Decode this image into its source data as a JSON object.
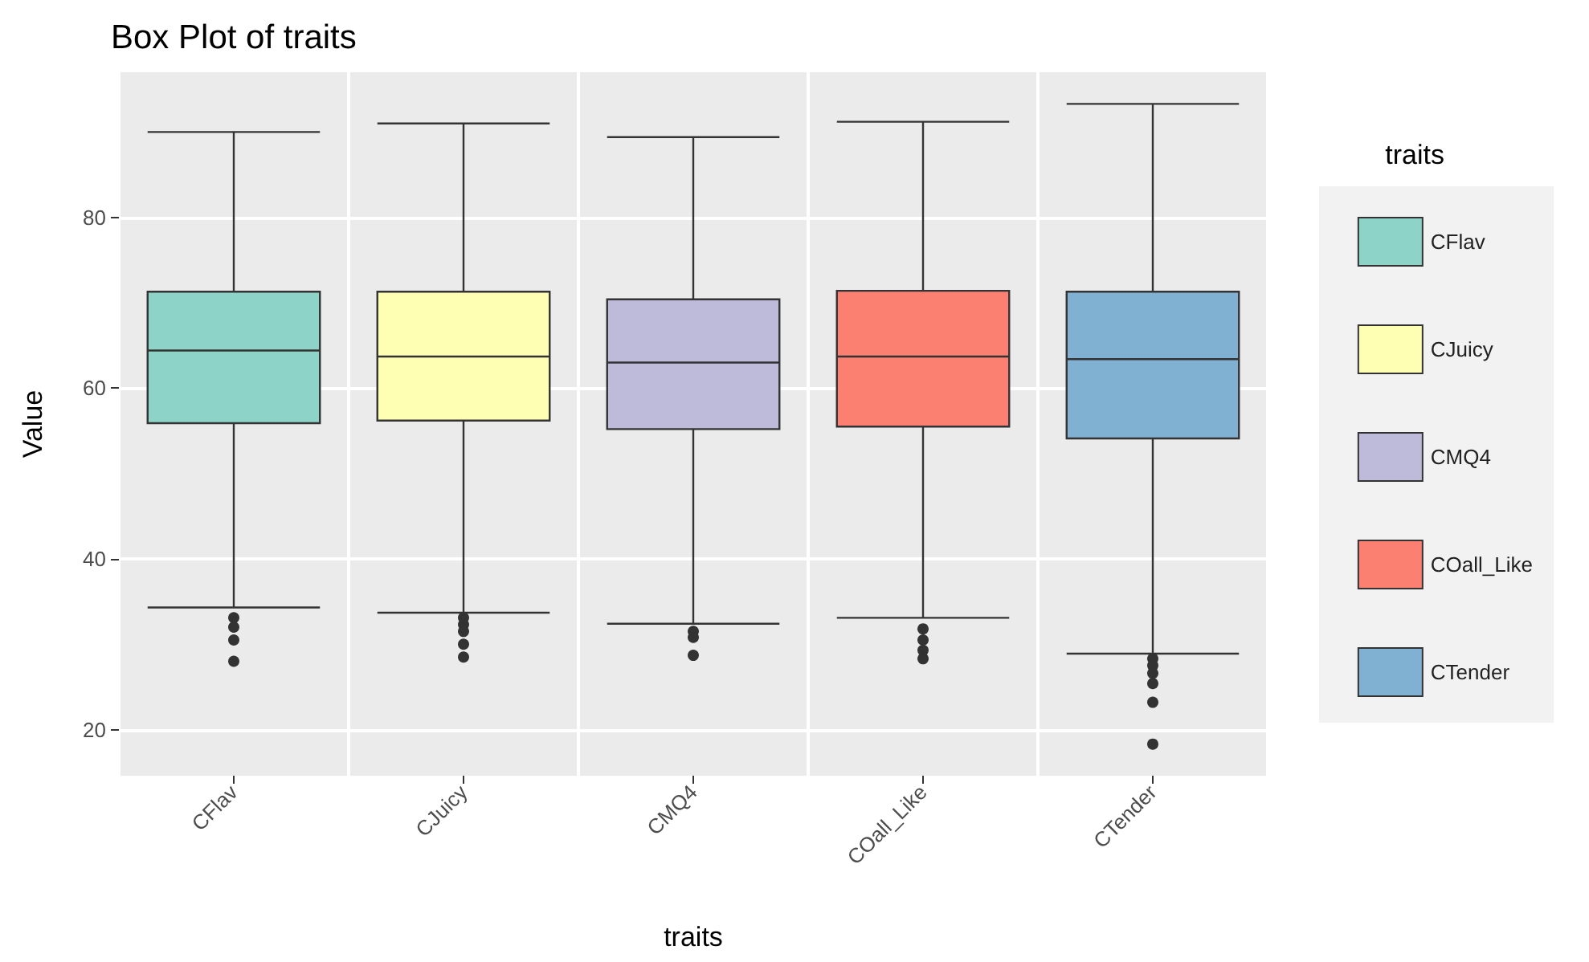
{
  "chart_data": {
    "type": "box",
    "title": "Box Plot of traits",
    "xlabel": "traits",
    "ylabel": "Value",
    "legend_title": "traits",
    "categories": [
      "CFlav",
      "CJuicy",
      "CMQ4",
      "COall_Like",
      "CTender"
    ],
    "series": [
      {
        "name": "CFlav",
        "color": "#8dd3c7",
        "boxes": [
          {
            "low": 34.3,
            "q1": 55.9,
            "median": 64.4,
            "q3": 71.3,
            "high": 90.0,
            "outliers": [
              33.1,
              32,
              30.5,
              28
            ]
          },
          null,
          null,
          null,
          null
        ]
      },
      {
        "name": "CJuicy",
        "color": "#ffffb3",
        "boxes": [
          null,
          {
            "low": 33.7,
            "q1": 56.2,
            "median": 63.7,
            "q3": 71.3,
            "high": 91.0,
            "outliers": [
              33.1,
              32.3,
              31.5,
              30,
              28.5
            ]
          },
          null,
          null,
          null
        ]
      },
      {
        "name": "CMQ4",
        "color": "#bebada",
        "boxes": [
          null,
          null,
          {
            "low": 32.4,
            "q1": 55.2,
            "median": 63.0,
            "q3": 70.4,
            "high": 89.4,
            "outliers": [
              31.5,
              30.8,
              28.7
            ]
          },
          null,
          null
        ]
      },
      {
        "name": "COall_Like",
        "color": "#fb8072",
        "boxes": [
          null,
          null,
          null,
          {
            "low": 33.1,
            "q1": 55.5,
            "median": 63.7,
            "q3": 71.4,
            "high": 91.2,
            "outliers": [
              31.8,
              30.5,
              29.3,
              28.3
            ]
          },
          null
        ]
      },
      {
        "name": "CTender",
        "color": "#80b1d3",
        "boxes": [
          null,
          null,
          null,
          null,
          {
            "low": 28.9,
            "q1": 54.1,
            "median": 63.4,
            "q3": 71.3,
            "high": 93.3,
            "outliers": [
              28.3,
              27.5,
              26.6,
              25.4,
              23.2,
              18.3
            ]
          }
        ]
      }
    ],
    "ylim": [
      14.6,
      97
    ],
    "yticks": [
      20,
      40,
      60,
      80
    ],
    "grid": true,
    "legend": "right"
  }
}
